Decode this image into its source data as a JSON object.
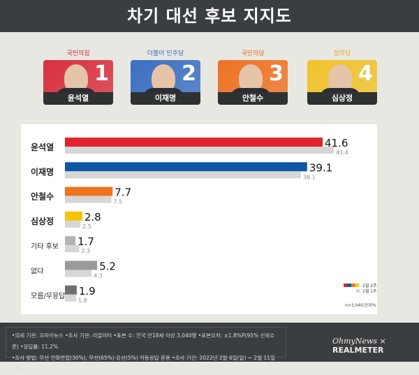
{
  "title": "차기 대선 후보 지지도",
  "candidates": [
    {
      "party": "국민의힘",
      "name": "윤석열",
      "number": "1",
      "party_color": "#d0273a",
      "card_color": "#d8303e"
    },
    {
      "party": "더불어 민주당",
      "name": "이재명",
      "number": "2",
      "party_color": "#3a6db5",
      "card_color": "#3c6fc2"
    },
    {
      "party": "국민의당",
      "name": "안철수",
      "number": "3",
      "party_color": "#e46a1e",
      "card_color": "#ee7224"
    },
    {
      "party": "정의당",
      "name": "심상정",
      "number": "4",
      "party_color": "#e3a722",
      "card_color": "#f0c22c"
    }
  ],
  "chart_data": {
    "type": "bar",
    "orientation": "horizontal",
    "categories": [
      "윤석열",
      "이재명",
      "안철수",
      "심상정",
      "기타 후보",
      "없다",
      "모름/무응답"
    ],
    "series": [
      {
        "name": "2월 2주",
        "values": [
          41.6,
          39.1,
          7.7,
          2.8,
          1.7,
          5.2,
          1.9
        ],
        "colors": [
          "#e3222f",
          "#0e55a6",
          "#ee7420",
          "#f5c400",
          "#b4b4b4",
          "#9a9a9a",
          "#6f6f6f"
        ]
      },
      {
        "name": "2월 1주",
        "values": [
          43.4,
          38.1,
          7.5,
          2.5,
          2.3,
          4.3,
          1.8
        ],
        "color": "#d6d6d6"
      }
    ],
    "xlim": [
      0,
      48
    ],
    "grid": false,
    "legend": "bottom-right",
    "note": "n=3,040,단위%"
  },
  "footer": {
    "line1": "•의뢰 기관: 오마이뉴스 •조사 기관: 리얼미터 •표본 수: 전국 만18세 이상 3,040명 •표본오차: ±1.8%P(95% 신뢰수준) •응답률: 11.2%",
    "line2": "•조사 방법: 무선 전화면접(30%), 무선(65%)·유선(5%) 자동응답 혼용  •조사 기간: 2022년 2월 6일(일) ~ 2월 11일(금)",
    "logo_left": "OhmyNews",
    "logo_sep": "×",
    "logo_right": "REALMETER"
  }
}
